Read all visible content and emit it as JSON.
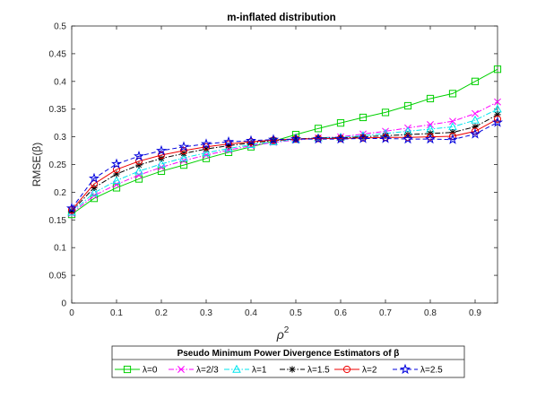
{
  "chart_data": {
    "type": "line",
    "title": "m-inflated distribution",
    "xlabel": "ρ",
    "xlabel_superscript": "2",
    "ylabel": "RMSE(β)",
    "xlim": [
      0,
      0.95
    ],
    "ylim": [
      0,
      0.5
    ],
    "xticks": [
      "0",
      "0.1",
      "0.2",
      "0.3",
      "0.4",
      "0.5",
      "0.6",
      "0.7",
      "0.8",
      "0.9"
    ],
    "yticks": [
      "0",
      "0.05",
      "0.1",
      "0.15",
      "0.2",
      "0.25",
      "0.3",
      "0.35",
      "0.4",
      "0.45",
      "0.5"
    ],
    "x": [
      0,
      0.05,
      0.1,
      0.15,
      0.2,
      0.25,
      0.3,
      0.35,
      0.4,
      0.45,
      0.5,
      0.55,
      0.6,
      0.65,
      0.7,
      0.75,
      0.8,
      0.85,
      0.9,
      0.95
    ],
    "legend_title": "Pseudo Minimum Power Divergence Estimators of β",
    "legend_position": "bottom-outside",
    "series": [
      {
        "name": "λ=0",
        "color": "#00d000",
        "marker": "square",
        "dash": "solid",
        "values": [
          0.16,
          0.189,
          0.208,
          0.224,
          0.238,
          0.249,
          0.261,
          0.272,
          0.282,
          0.292,
          0.304,
          0.315,
          0.325,
          0.335,
          0.344,
          0.356,
          0.369,
          0.378,
          0.4,
          0.422
        ]
      },
      {
        "name": "λ=2/3",
        "color": "#ff00ff",
        "marker": "x",
        "dash": "dashdot",
        "values": [
          0.162,
          0.194,
          0.214,
          0.231,
          0.245,
          0.257,
          0.267,
          0.276,
          0.284,
          0.29,
          0.294,
          0.298,
          0.3,
          0.305,
          0.31,
          0.316,
          0.322,
          0.328,
          0.342,
          0.363
        ]
      },
      {
        "name": "λ=1",
        "color": "#00e5ee",
        "marker": "triangle",
        "dash": "dashdot",
        "values": [
          0.164,
          0.199,
          0.221,
          0.238,
          0.251,
          0.262,
          0.271,
          0.279,
          0.286,
          0.291,
          0.295,
          0.298,
          0.299,
          0.302,
          0.306,
          0.31,
          0.314,
          0.318,
          0.33,
          0.35
        ]
      },
      {
        "name": "λ=1.5",
        "color": "#000000",
        "marker": "asterisk",
        "dash": "dashdot",
        "values": [
          0.166,
          0.208,
          0.233,
          0.249,
          0.261,
          0.27,
          0.278,
          0.284,
          0.289,
          0.293,
          0.296,
          0.298,
          0.298,
          0.3,
          0.302,
          0.304,
          0.306,
          0.308,
          0.318,
          0.34
        ]
      },
      {
        "name": "λ=2",
        "color": "#ee0000",
        "marker": "circle",
        "dash": "solid",
        "values": [
          0.168,
          0.215,
          0.241,
          0.256,
          0.267,
          0.275,
          0.282,
          0.287,
          0.291,
          0.294,
          0.296,
          0.297,
          0.297,
          0.298,
          0.299,
          0.299,
          0.3,
          0.301,
          0.31,
          0.332
        ]
      },
      {
        "name": "λ=2.5",
        "color": "#0000dd",
        "marker": "star",
        "dash": "dashed",
        "values": [
          0.171,
          0.225,
          0.251,
          0.265,
          0.275,
          0.282,
          0.287,
          0.291,
          0.293,
          0.295,
          0.296,
          0.296,
          0.296,
          0.297,
          0.297,
          0.296,
          0.296,
          0.295,
          0.305,
          0.326
        ]
      }
    ]
  }
}
